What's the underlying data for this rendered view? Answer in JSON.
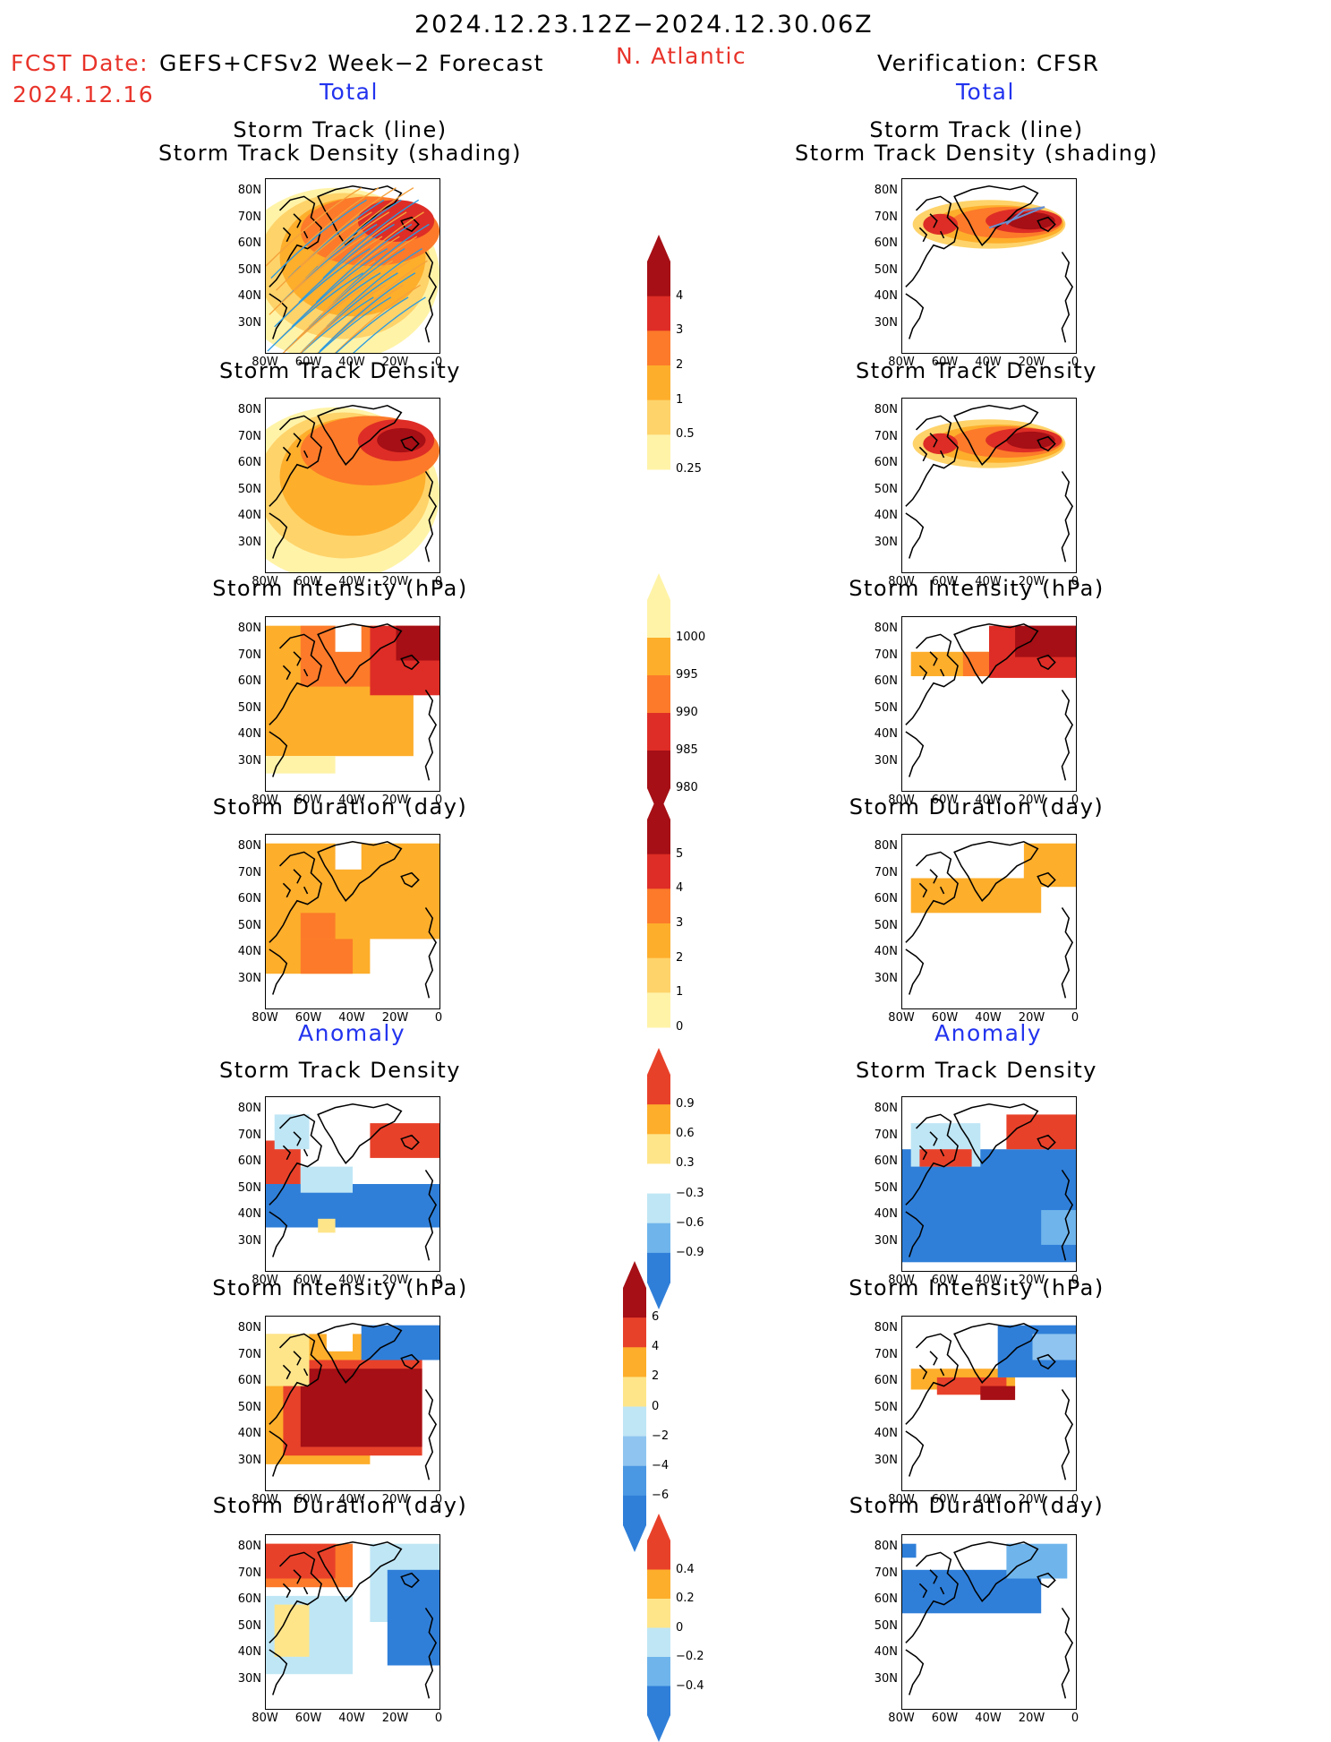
{
  "header": {
    "period": "2024.12.23.12Z−2024.12.30.06Z",
    "region": "N. Atlantic",
    "fcst_label": "FCST Date:",
    "fcst_model": "GEFS+CFSv2 Week−2 Forecast",
    "fcst_date": "2024.12.16",
    "verification": "Verification: CFSR"
  },
  "columns": {
    "left_total": "Total",
    "right_total": "Total",
    "left_anomaly": "Anomaly",
    "right_anomaly": "Anomaly"
  },
  "panel_titles": {
    "track_line": "Storm Track (line)",
    "track_shading": "Storm Track Density (shading)",
    "density": "Storm Track Density",
    "intensity": "Storm Intensity (hPa)",
    "duration": "Storm Duration (day)"
  },
  "axes": {
    "lat_labels": [
      "80N",
      "70N",
      "60N",
      "50N",
      "40N",
      "30N"
    ],
    "lon_labels": [
      "80W",
      "60W",
      "40W",
      "20W",
      "0"
    ]
  },
  "colorbars": {
    "density": {
      "labels": [
        "4",
        "3",
        "2",
        "1",
        "0.5",
        "0.25"
      ],
      "colors": [
        "#a50f15",
        "#de2d26",
        "#fc7a2a",
        "#fdae2b",
        "#fed36a",
        "#fff3a8"
      ]
    },
    "intensity": {
      "labels": [
        "1000",
        "995",
        "990",
        "985",
        "980"
      ],
      "colors": [
        "#fff3a8",
        "#fdae2b",
        "#fc7a2a",
        "#de2d26",
        "#a50f15"
      ]
    },
    "duration": {
      "labels": [
        "5",
        "4",
        "3",
        "2",
        "1",
        "0"
      ],
      "colors": [
        "#a50f15",
        "#de2d26",
        "#fc7a2a",
        "#fdae2b",
        "#fed36a",
        "#fff3a8"
      ]
    },
    "anom_density": {
      "labels": [
        "0.9",
        "0.6",
        "0.3",
        "−0.3",
        "−0.6",
        "−0.9"
      ],
      "colors": [
        "#e8412a",
        "#fdae2b",
        "#fee58a",
        "#ffffff",
        "#bfe6f5",
        "#6fb5ec",
        "#2f7fd9"
      ]
    },
    "anom_intensity": {
      "labels": [
        "6",
        "4",
        "2",
        "0",
        "−2",
        "−4",
        "−6"
      ],
      "colors": [
        "#a50f15",
        "#e8412a",
        "#fdae2b",
        "#fee58a",
        "#bfe6f5",
        "#8fc4f0",
        "#4a97e3",
        "#2f7fd9"
      ]
    },
    "anom_duration": {
      "labels": [
        "0.4",
        "0.2",
        "0",
        "−0.2",
        "−0.4"
      ],
      "colors": [
        "#e8412a",
        "#fdae2b",
        "#fee58a",
        "#bfe6f5",
        "#6fb5ec",
        "#2f7fd9"
      ]
    }
  }
}
